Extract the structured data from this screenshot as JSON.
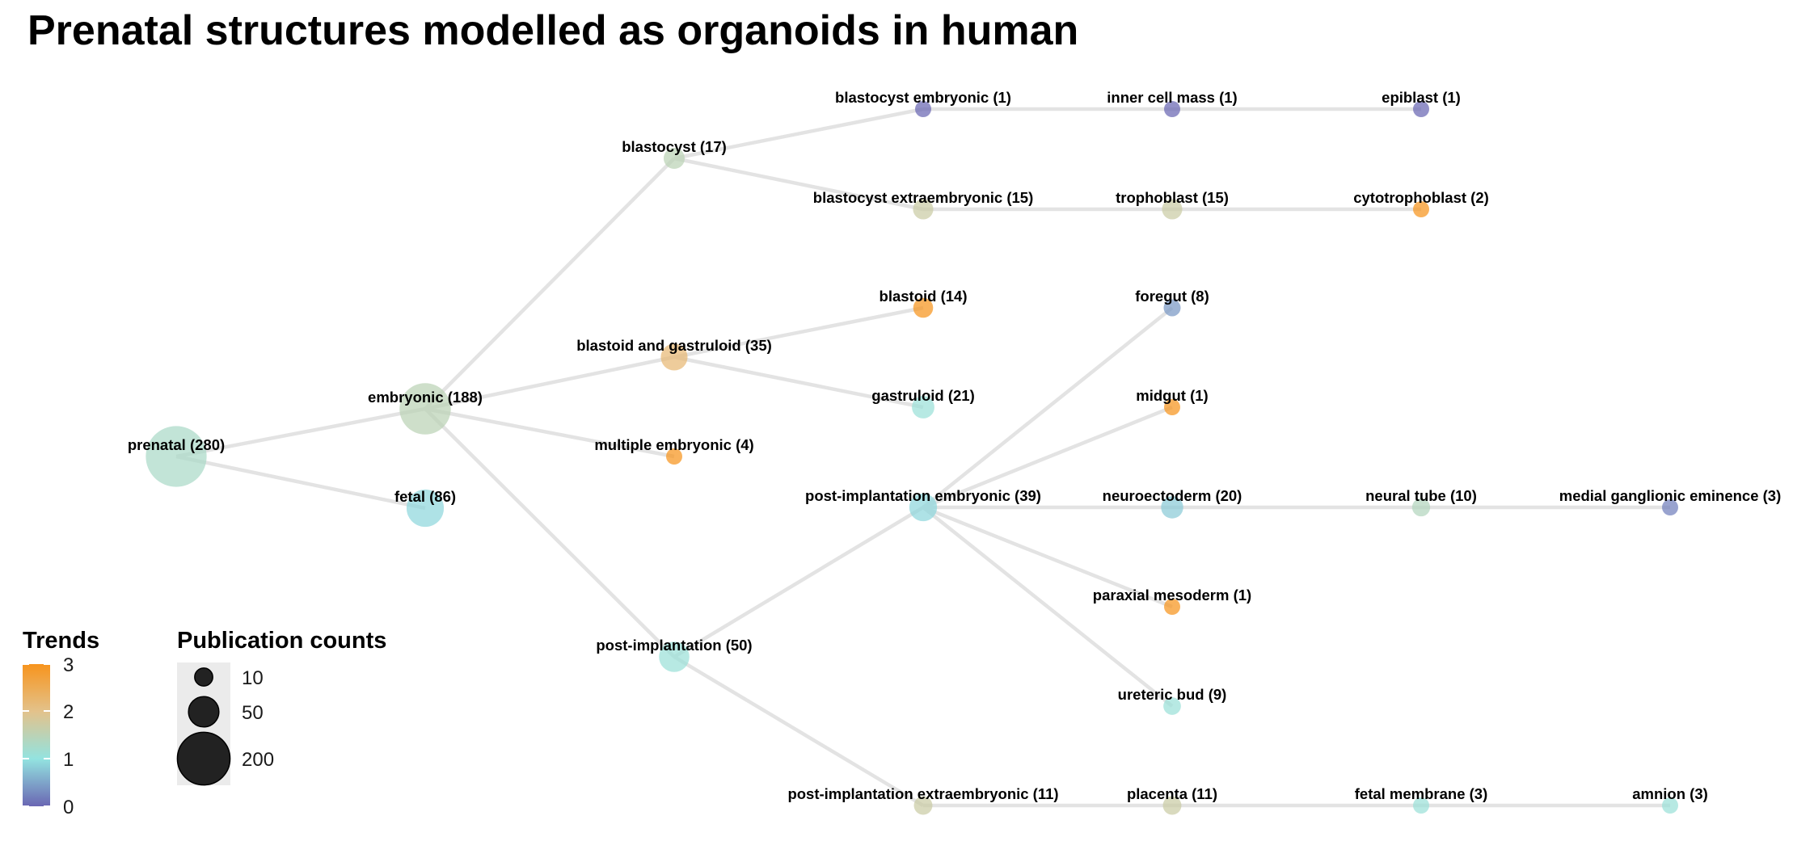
{
  "title": "Prenatal structures modelled as organoids in human",
  "nodes": [
    {
      "id": "prenatal",
      "label": "prenatal (280)",
      "count": 280,
      "trend": 1.3
    },
    {
      "id": "embryonic",
      "label": "embryonic (188)",
      "count": 188,
      "trend": 1.5
    },
    {
      "id": "fetal",
      "label": "fetal (86)",
      "count": 86,
      "trend": 0.9
    },
    {
      "id": "blastocyst",
      "label": "blastocyst (17)",
      "count": 17,
      "trend": 1.5
    },
    {
      "id": "blastoid_gastruloid",
      "label": "blastoid and gastruloid (35)",
      "count": 35,
      "trend": 2.2
    },
    {
      "id": "multiple_embryonic",
      "label": "multiple embryonic (4)",
      "count": 4,
      "trend": 3
    },
    {
      "id": "post_implantation",
      "label": "post-implantation (50)",
      "count": 50,
      "trend": 1.1
    },
    {
      "id": "blastocyst_embryonic",
      "label": "blastocyst embryonic (1)",
      "count": 1,
      "trend": 0
    },
    {
      "id": "blastocyst_extraembryonic",
      "label": "blastocyst extraembryonic (15)",
      "count": 15,
      "trend": 1.7
    },
    {
      "id": "blastoid",
      "label": "blastoid (14)",
      "count": 14,
      "trend": 3
    },
    {
      "id": "gastruloid",
      "label": "gastruloid (21)",
      "count": 21,
      "trend": 1.1
    },
    {
      "id": "post_implantation_embryonic",
      "label": "post-implantation embryonic (39)",
      "count": 39,
      "trend": 0.9
    },
    {
      "id": "post_implantation_extraembryonic",
      "label": "post-implantation extraembryonic (11)",
      "count": 11,
      "trend": 1.7
    },
    {
      "id": "inner_cell_mass",
      "label": "inner cell mass (1)",
      "count": 1,
      "trend": 0
    },
    {
      "id": "trophoblast",
      "label": "trophoblast (15)",
      "count": 15,
      "trend": 1.7
    },
    {
      "id": "foregut",
      "label": "foregut (8)",
      "count": 8,
      "trend": 0.4
    },
    {
      "id": "midgut",
      "label": "midgut (1)",
      "count": 1,
      "trend": 3
    },
    {
      "id": "neuroectoderm",
      "label": "neuroectoderm (20)",
      "count": 20,
      "trend": 0.8
    },
    {
      "id": "paraxial_mesoderm",
      "label": "paraxial mesoderm (1)",
      "count": 1,
      "trend": 3
    },
    {
      "id": "ureteric_bud",
      "label": "ureteric bud (9)",
      "count": 9,
      "trend": 1.1
    },
    {
      "id": "placenta",
      "label": "placenta (11)",
      "count": 11,
      "trend": 1.7
    },
    {
      "id": "epiblast",
      "label": "epiblast (1)",
      "count": 1,
      "trend": 0
    },
    {
      "id": "cytotrophoblast",
      "label": "cytotrophoblast (2)",
      "count": 2,
      "trend": 3
    },
    {
      "id": "neural_tube",
      "label": "neural tube (10)",
      "count": 10,
      "trend": 1.4
    },
    {
      "id": "fetal_membrane",
      "label": "fetal membrane (3)",
      "count": 3,
      "trend": 1.1
    },
    {
      "id": "medial_ganglionic_eminence",
      "label": "medial ganglionic eminence (3)",
      "count": 3,
      "trend": 0.2
    },
    {
      "id": "amnion",
      "label": "amnion (3)",
      "count": 3,
      "trend": 1.1
    }
  ],
  "edges": [
    [
      "prenatal",
      "embryonic"
    ],
    [
      "prenatal",
      "fetal"
    ],
    [
      "embryonic",
      "blastocyst"
    ],
    [
      "embryonic",
      "blastoid_gastruloid"
    ],
    [
      "embryonic",
      "multiple_embryonic"
    ],
    [
      "embryonic",
      "post_implantation"
    ],
    [
      "blastocyst",
      "blastocyst_embryonic"
    ],
    [
      "blastocyst",
      "blastocyst_extraembryonic"
    ],
    [
      "blastoid_gastruloid",
      "blastoid"
    ],
    [
      "blastoid_gastruloid",
      "gastruloid"
    ],
    [
      "post_implantation",
      "post_implantation_embryonic"
    ],
    [
      "post_implantation",
      "post_implantation_extraembryonic"
    ],
    [
      "blastocyst_embryonic",
      "inner_cell_mass"
    ],
    [
      "inner_cell_mass",
      "epiblast"
    ],
    [
      "blastocyst_extraembryonic",
      "trophoblast"
    ],
    [
      "trophoblast",
      "cytotrophoblast"
    ],
    [
      "post_implantation_embryonic",
      "foregut"
    ],
    [
      "post_implantation_embryonic",
      "midgut"
    ],
    [
      "post_implantation_embryonic",
      "neuroectoderm"
    ],
    [
      "post_implantation_embryonic",
      "paraxial_mesoderm"
    ],
    [
      "post_implantation_embryonic",
      "ureteric_bud"
    ],
    [
      "neuroectoderm",
      "neural_tube"
    ],
    [
      "neural_tube",
      "medial_ganglionic_eminence"
    ],
    [
      "post_implantation_extraembryonic",
      "placenta"
    ],
    [
      "placenta",
      "fetal_membrane"
    ],
    [
      "fetal_membrane",
      "amnion"
    ]
  ],
  "legend": {
    "trends": {
      "title": "Trends",
      "ticks": [
        "3",
        "2",
        "1",
        "0"
      ],
      "colors": [
        "#f7941d",
        "#e3c28b",
        "#93e3e0",
        "#6a66b3"
      ]
    },
    "counts": {
      "title": "Publication counts",
      "entries": [
        {
          "label": "10",
          "value": 10
        },
        {
          "label": "50",
          "value": 50
        },
        {
          "label": "200",
          "value": 200
        }
      ]
    }
  },
  "colors": {
    "edge": "#e3e3e3",
    "legend_circle": "#222222",
    "legend_key_bg": "#ebebeb"
  }
}
